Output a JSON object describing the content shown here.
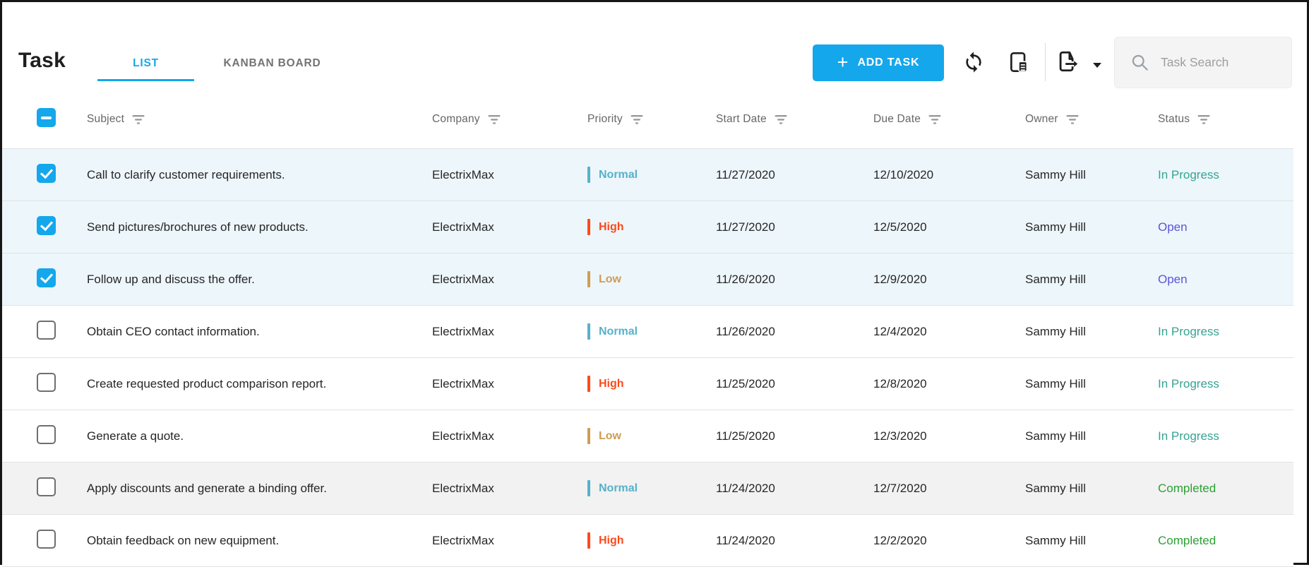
{
  "accent": "#14a7ec",
  "header": {
    "title": "Task",
    "tabs": [
      {
        "label": "LIST",
        "active": true
      },
      {
        "label": "KANBAN BOARD",
        "active": false
      }
    ],
    "add_task_plus": "+",
    "add_task_label": "ADD TASK",
    "toolbar_icons": [
      "refresh-icon",
      "column-chooser-icon",
      "export-icon",
      "export-dropdown-caret"
    ],
    "search_placeholder": "Task Search"
  },
  "table": {
    "columns": [
      "Subject",
      "Company",
      "Priority",
      "Start Date",
      "Due Date",
      "Owner",
      "Status"
    ],
    "select_all_state": "indeterminate",
    "rows": [
      {
        "checked": true,
        "shaded": false,
        "subject": "Call to clarify customer requirements.",
        "company": "ElectrixMax",
        "priority": "Normal",
        "start_date": "11/27/2020",
        "due_date": "12/10/2020",
        "owner": "Sammy Hill",
        "status": "In Progress"
      },
      {
        "checked": true,
        "shaded": false,
        "subject": "Send pictures/brochures of new products.",
        "company": "ElectrixMax",
        "priority": "High",
        "start_date": "11/27/2020",
        "due_date": "12/5/2020",
        "owner": "Sammy Hill",
        "status": "Open"
      },
      {
        "checked": true,
        "shaded": false,
        "subject": "Follow up and discuss the offer.",
        "company": "ElectrixMax",
        "priority": "Low",
        "start_date": "11/26/2020",
        "due_date": "12/9/2020",
        "owner": "Sammy Hill",
        "status": "Open"
      },
      {
        "checked": false,
        "shaded": false,
        "subject": "Obtain CEO contact information.",
        "company": "ElectrixMax",
        "priority": "Normal",
        "start_date": "11/26/2020",
        "due_date": "12/4/2020",
        "owner": "Sammy Hill",
        "status": "In Progress"
      },
      {
        "checked": false,
        "shaded": false,
        "subject": "Create requested product comparison report.",
        "company": "ElectrixMax",
        "priority": "High",
        "start_date": "11/25/2020",
        "due_date": "12/8/2020",
        "owner": "Sammy Hill",
        "status": "In Progress"
      },
      {
        "checked": false,
        "shaded": false,
        "subject": "Generate a quote.",
        "company": "ElectrixMax",
        "priority": "Low",
        "start_date": "11/25/2020",
        "due_date": "12/3/2020",
        "owner": "Sammy Hill",
        "status": "In Progress"
      },
      {
        "checked": false,
        "shaded": true,
        "subject": "Apply discounts and generate a binding offer.",
        "company": "ElectrixMax",
        "priority": "Normal",
        "start_date": "11/24/2020",
        "due_date": "12/7/2020",
        "owner": "Sammy Hill",
        "status": "Completed"
      },
      {
        "checked": false,
        "shaded": false,
        "subject": "Obtain feedback on new equipment.",
        "company": "ElectrixMax",
        "priority": "High",
        "start_date": "11/24/2020",
        "due_date": "12/2/2020",
        "owner": "Sammy Hill",
        "status": "Completed"
      }
    ]
  },
  "priority_colors": {
    "Normal": "#56b1ca",
    "High": "#fb4a1d",
    "Low": "#cf9c55"
  },
  "status_colors": {
    "In Progress": "#36a392",
    "Open": "#5b54d8",
    "Completed": "#2ba134"
  }
}
